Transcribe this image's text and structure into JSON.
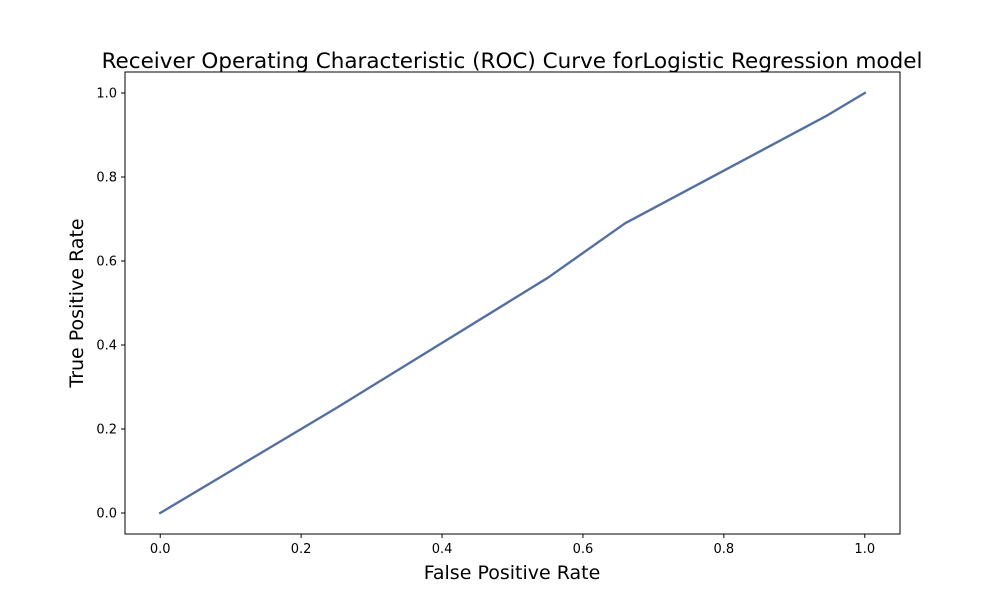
{
  "chart_data": {
    "type": "line",
    "title": "Receiver Operating Characteristic (ROC) Curve forLogistic Regression  model",
    "xlabel": "False Positive Rate",
    "ylabel": "True Positive Rate",
    "xlim": [
      -0.05,
      1.05
    ],
    "ylim": [
      -0.05,
      1.05
    ],
    "xticks": [
      "0.0",
      "0.2",
      "0.4",
      "0.6",
      "0.8",
      "1.0"
    ],
    "yticks": [
      "0.0",
      "0.2",
      "0.4",
      "0.6",
      "0.8",
      "1.0"
    ],
    "grid": false,
    "series": [
      {
        "color": "#5470a0",
        "x": [
          0.0,
          0.25,
          0.55,
          0.66,
          0.945,
          1.0
        ],
        "y": [
          0.0,
          0.25,
          0.56,
          0.69,
          0.945,
          1.0
        ]
      }
    ]
  }
}
